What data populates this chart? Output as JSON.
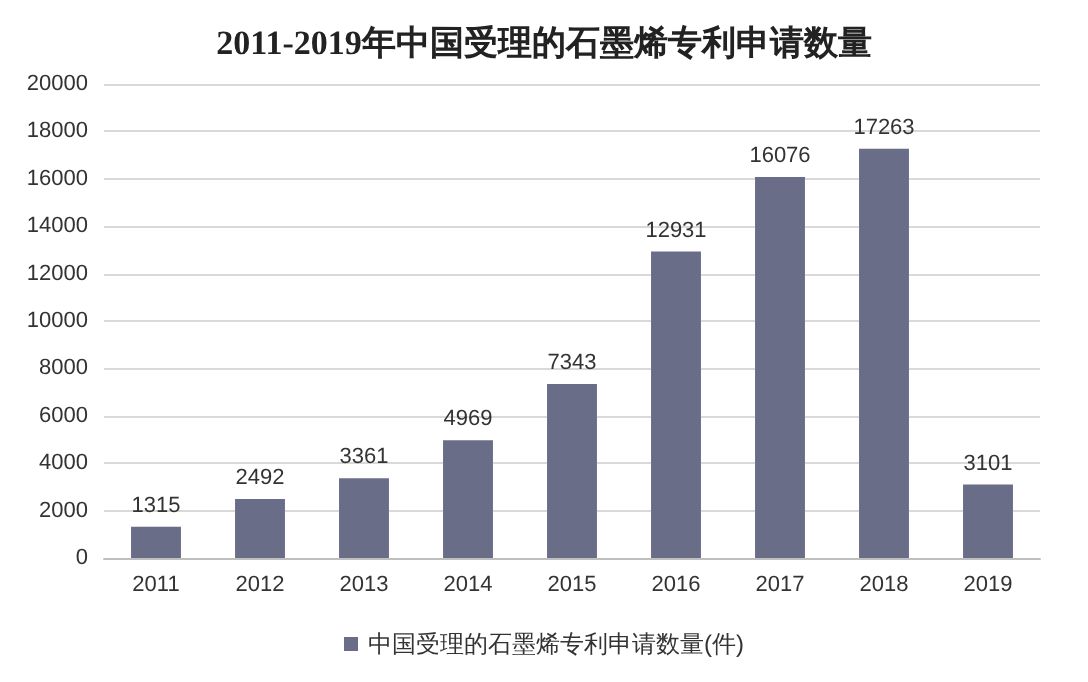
{
  "chart_data": {
    "type": "bar",
    "title": "2011-2019年中国受理的石墨烯专利申请数量",
    "categories": [
      "2011",
      "2012",
      "2013",
      "2014",
      "2015",
      "2016",
      "2017",
      "2018",
      "2019"
    ],
    "series": [
      {
        "name": "中国受理的石墨烯专利申请数量(件)",
        "color": "#6a6d88",
        "values": [
          1315,
          2492,
          3361,
          4969,
          7343,
          12931,
          16076,
          17263,
          3101
        ]
      }
    ],
    "ylim": [
      0,
      20000
    ],
    "yticks": [
      0,
      2000,
      4000,
      6000,
      8000,
      10000,
      12000,
      14000,
      16000,
      18000,
      20000
    ],
    "grid": "y",
    "legend": "bottom",
    "data_labels": true
  }
}
